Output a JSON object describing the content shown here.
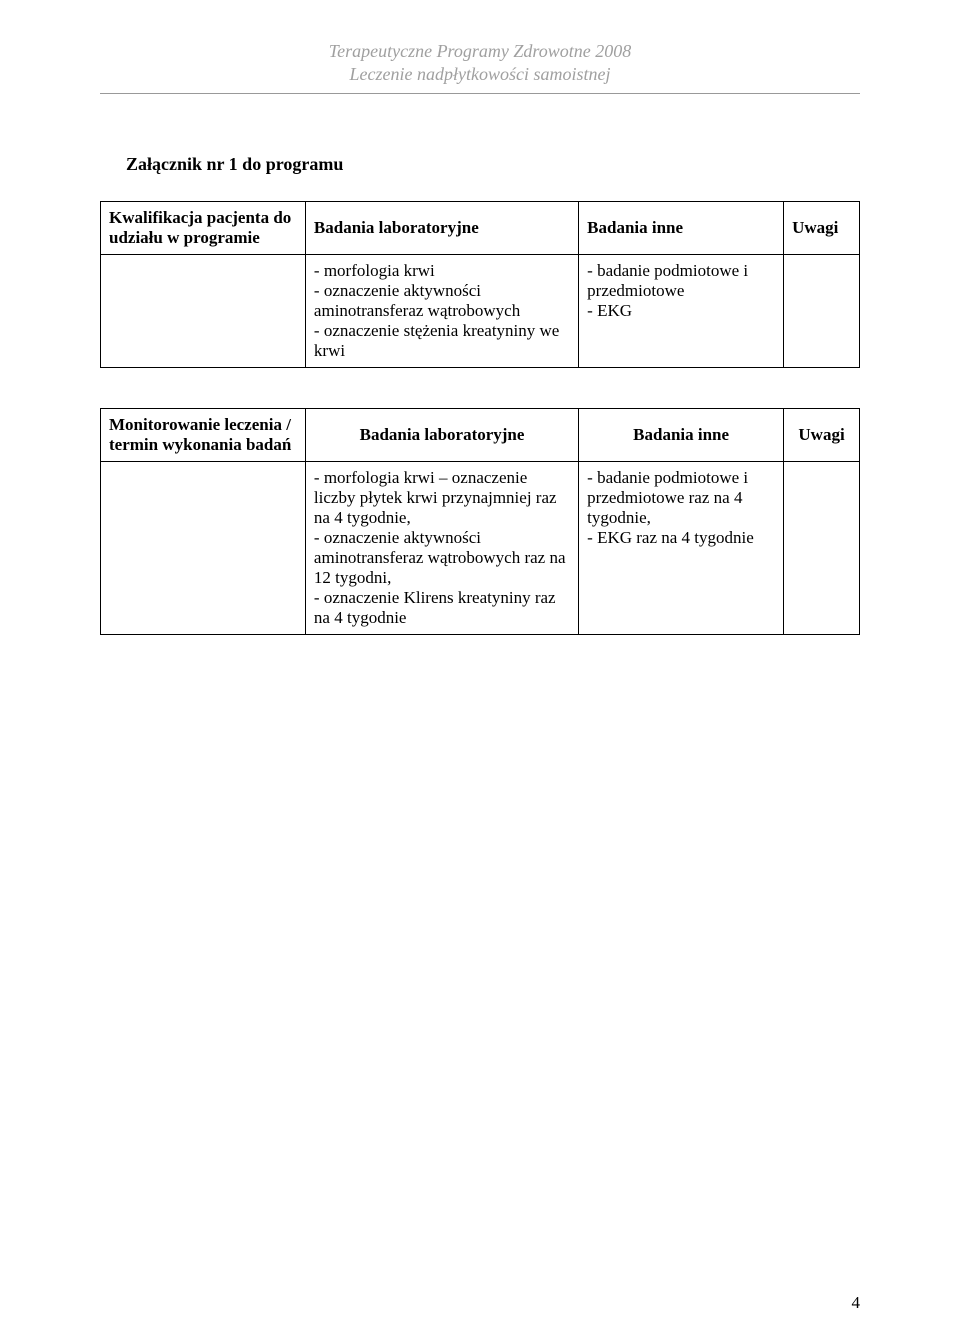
{
  "header": {
    "line1": "Terapeutyczne Programy Zdrowotne 2008",
    "line2": "Leczenie nadpłytkowości samoistnej"
  },
  "section_title": "Załącznik nr 1 do programu",
  "table1": {
    "row1": {
      "c1": "Kwalifikacja pacjenta do udziału w programie",
      "c2": "Badania laboratoryjne",
      "c3": "Badania inne",
      "c4": "Uwagi"
    },
    "row2": {
      "c1": "",
      "c2": "- morfologia krwi\n- oznaczenie aktywności aminotransferaz wątrobowych\n- oznaczenie stężenia kreatyniny we krwi",
      "c3": "- badanie podmiotowe i przedmiotowe\n- EKG",
      "c4": ""
    }
  },
  "table2": {
    "row1": {
      "c1": "Monitorowanie leczenia / termin wykonania badań",
      "c2": "Badania laboratoryjne",
      "c3": "Badania inne",
      "c4": "Uwagi"
    },
    "row2": {
      "c1": "",
      "c2": "- morfologia krwi – oznaczenie liczby płytek krwi przynajmniej raz na 4 tygodnie,\n- oznaczenie aktywności aminotransferaz wątrobowych raz na 12 tygodni,\n- oznaczenie Klirens kreatyniny raz na 4 tygodnie",
      "c3": "- badanie podmiotowe i przedmiotowe raz na 4 tygodnie,\n- EKG raz na 4 tygodnie",
      "c4": ""
    }
  },
  "page_number": "4"
}
